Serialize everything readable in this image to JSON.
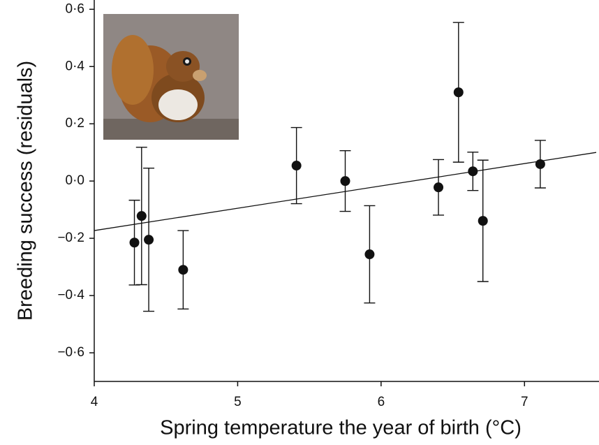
{
  "chart_data": {
    "type": "scatter",
    "x_label": "Spring temperature the year of birth (°C)",
    "y_label": "Breeding success (residuals)",
    "xlim": [
      4,
      7.5
    ],
    "ylim": [
      -0.7,
      0.63
    ],
    "xticks": [
      4,
      5,
      6,
      7
    ],
    "yticks": [
      {
        "value": 0.6,
        "label": "0·6"
      },
      {
        "value": 0.4,
        "label": "0·4"
      },
      {
        "value": 0.2,
        "label": "0·2"
      },
      {
        "value": 0,
        "label": "0·0"
      },
      {
        "value": -0.2,
        "label": "−0·2"
      },
      {
        "value": -0.4,
        "label": "−0·4"
      },
      {
        "value": -0.6,
        "label": "−0·6"
      }
    ],
    "grid": false,
    "series": [
      {
        "color": "#111111",
        "x": [
          4.28,
          4.33,
          4.38,
          4.62,
          5.41,
          5.75,
          5.92,
          6.4,
          6.54,
          6.64,
          6.71,
          7.11
        ],
        "values": [
          -0.215,
          -0.122,
          -0.205,
          -0.31,
          0.054,
          0.0,
          -0.256,
          -0.022,
          0.31,
          0.034,
          -0.139,
          0.059
        ],
        "errors": [
          0.148,
          0.24,
          0.25,
          0.137,
          0.133,
          0.106,
          0.17,
          0.097,
          0.244,
          0.067,
          0.212,
          0.083
        ]
      }
    ],
    "fit": {
      "x": [
        4,
        7.5
      ],
      "y": [
        -0.173,
        0.1
      ]
    }
  }
}
